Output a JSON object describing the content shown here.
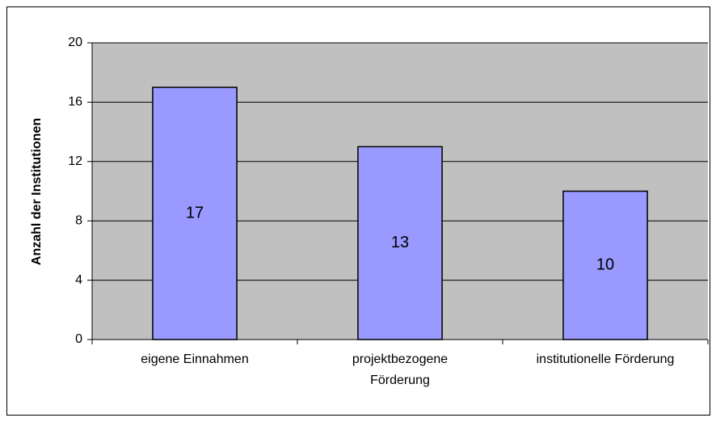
{
  "chart_data": {
    "type": "bar",
    "y_label": "Anzahl der Institutionen",
    "categories": [
      "eigene Einnahmen",
      "projektbezogene\nFörderung",
      "institutionelle Förderung"
    ],
    "values": [
      17,
      13,
      10
    ],
    "color": "#9999ff",
    "ylim": [
      0,
      20
    ],
    "yticks": [
      0,
      4,
      8,
      12,
      16,
      20
    ],
    "grid": true
  }
}
